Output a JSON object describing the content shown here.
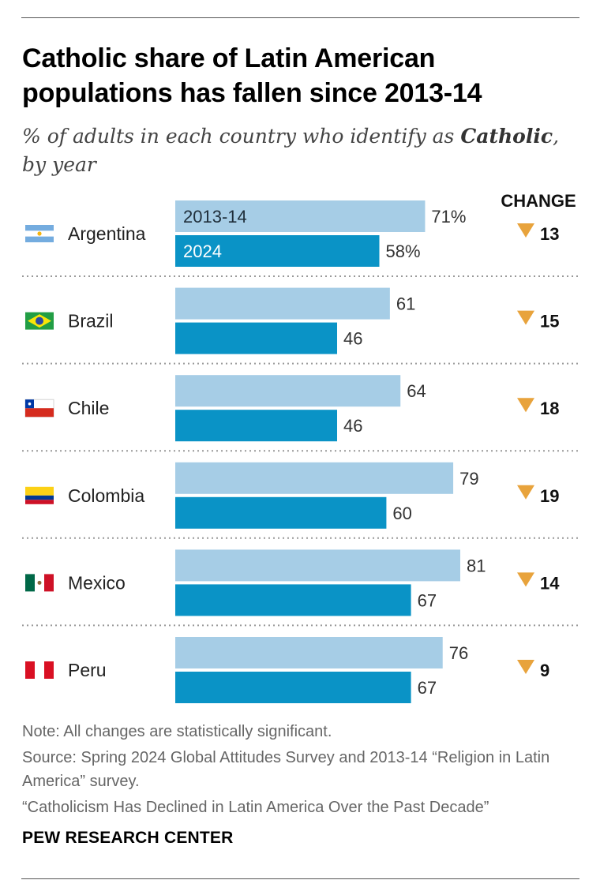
{
  "title": "Catholic share of Latin American populations has fallen since 2013-14",
  "subtitle": {
    "before": "% of adults in each country who identify as ",
    "emphasis": "Catholic",
    "after": ", by year"
  },
  "colors": {
    "bar_2013": "#a6cde6",
    "bar_2024": "#0a93c6",
    "change_marker": "#e8a33c"
  },
  "chart_data": {
    "type": "bar",
    "orientation": "horizontal",
    "change_header": "CHANGE",
    "series": [
      {
        "name": "2013-14",
        "values": [
          71,
          61,
          64,
          79,
          81,
          76
        ]
      },
      {
        "name": "2024",
        "values": [
          58,
          46,
          46,
          60,
          67,
          67
        ]
      }
    ],
    "rows": [
      {
        "country": "Argentina",
        "flag": "argentina-flag-icon",
        "v2013": 71,
        "v2024": 58,
        "label2013": "71%",
        "label2024": "58%",
        "change": "13"
      },
      {
        "country": "Brazil",
        "flag": "brazil-flag-icon",
        "v2013": 61,
        "v2024": 46,
        "label2013": "61",
        "label2024": "46",
        "change": "15"
      },
      {
        "country": "Chile",
        "flag": "chile-flag-icon",
        "v2013": 64,
        "v2024": 46,
        "label2013": "64",
        "label2024": "46",
        "change": "18"
      },
      {
        "country": "Colombia",
        "flag": "colombia-flag-icon",
        "v2013": 79,
        "v2024": 60,
        "label2013": "79",
        "label2024": "60",
        "change": "19"
      },
      {
        "country": "Mexico",
        "flag": "mexico-flag-icon",
        "v2013": 81,
        "v2024": 67,
        "label2013": "81",
        "label2024": "67",
        "change": "14"
      },
      {
        "country": "Peru",
        "flag": "peru-flag-icon",
        "v2013": 76,
        "v2024": 67,
        "label2013": "76",
        "label2024": "67",
        "change": "9"
      }
    ],
    "xlim": [
      0,
      100
    ]
  },
  "footer": {
    "note": "Note: All changes are statistically significant.",
    "source": "Source: Spring 2024 Global Attitudes Survey and 2013-14 “Religion in Latin America” survey.",
    "report": "“Catholicism Has Declined in Latin America Over the Past Decade”",
    "brand": "PEW RESEARCH CENTER"
  }
}
